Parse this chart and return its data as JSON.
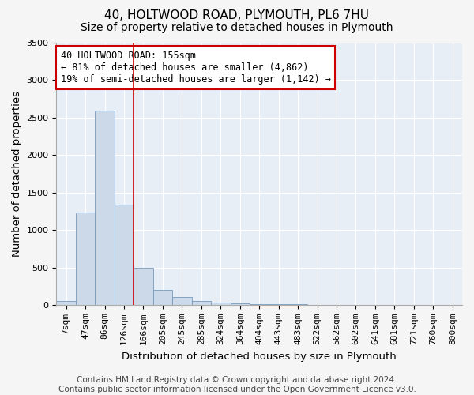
{
  "title": "40, HOLTWOOD ROAD, PLYMOUTH, PL6 7HU",
  "subtitle": "Size of property relative to detached houses in Plymouth",
  "xlabel": "Distribution of detached houses by size in Plymouth",
  "ylabel": "Number of detached properties",
  "categories": [
    "7sqm",
    "47sqm",
    "86sqm",
    "126sqm",
    "166sqm",
    "205sqm",
    "245sqm",
    "285sqm",
    "324sqm",
    "364sqm",
    "404sqm",
    "443sqm",
    "483sqm",
    "522sqm",
    "562sqm",
    "602sqm",
    "641sqm",
    "681sqm",
    "721sqm",
    "760sqm",
    "800sqm"
  ],
  "values": [
    50,
    1230,
    2590,
    1340,
    490,
    195,
    105,
    50,
    30,
    20,
    10,
    5,
    5,
    3,
    3,
    3,
    3,
    3,
    3,
    3,
    3
  ],
  "bar_color": "#ccd9e8",
  "bar_edge_color": "#7799bb",
  "annotation_text": "40 HOLTWOOD ROAD: 155sqm\n← 81% of detached houses are smaller (4,862)\n19% of semi-detached houses are larger (1,142) →",
  "annotation_box_color": "#ffffff",
  "annotation_box_edge_color": "#cc0000",
  "vline_color": "#cc0000",
  "vline_x": 3.5,
  "ylim": [
    0,
    3500
  ],
  "yticks": [
    0,
    500,
    1000,
    1500,
    2000,
    2500,
    3000,
    3500
  ],
  "fig_bg_color": "#f5f5f5",
  "plot_bg_color": "#e8eef5",
  "grid_color": "#ffffff",
  "title_fontsize": 11,
  "subtitle_fontsize": 10,
  "axis_label_fontsize": 9.5,
  "tick_fontsize": 8,
  "annotation_fontsize": 8.5,
  "footer_fontsize": 7.5
}
